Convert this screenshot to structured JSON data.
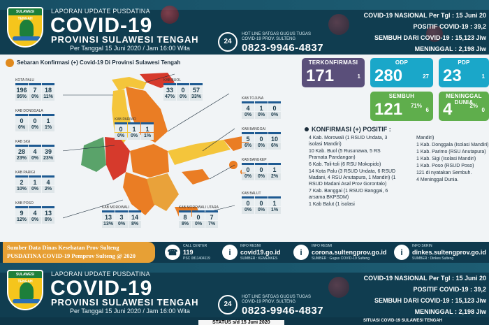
{
  "header": {
    "logo_text": "SULAWESI TENGAH",
    "subtitle": "LAPORAN UPDATE PUSDATINA",
    "title": "COVID-19",
    "province": "PROVINSI SULAWESI TENGAH",
    "date": "Per Tanggal 15 Juni 2020 / Jam 16:00 Wita",
    "hotline_badge": "24",
    "hotline_label_1": "HOT LINE SATGAS GUGUS TUGAS",
    "hotline_label_2": "COVID-19 PROV. SULTENG",
    "hotline_number": "0823-9946-4837"
  },
  "national": {
    "line1": "COVID-19 NASIONAL Per Tgl : 15 Juni 20",
    "line2": "POSITIF COVID-19 : 39,2",
    "line3": "SEMBUH DARI COVID-19 : 15,123 Jiw",
    "line4": "MENINGGAL : 2,198 Jiw"
  },
  "header2_national": {
    "line1": "COVID-19 NASIONAL Per Tgl : 15 Juni 20",
    "line2": "POSITIF COVID-19 : 39,2",
    "line3": "SEMBUH DARI COVID-19 : 15,123 Jiw",
    "line4": "MENINGGAL : 2,198 Jiw"
  },
  "map": {
    "heading": "Sebaran Konfirmasi (+) Covid-19 Di Provinsi Sulawesi Tengah",
    "districts": [
      {
        "name": "KOTA PALU",
        "row1": [
          "196",
          "7",
          "18"
        ],
        "row2": [
          "95%",
          "0%",
          "11%"
        ]
      },
      {
        "name": "KAB DONGGALA",
        "row1": [
          "0",
          "0",
          "1"
        ],
        "row2": [
          "0%",
          "0%",
          "1%"
        ]
      },
      {
        "name": "KAB SIGI",
        "row1": [
          "28",
          "4",
          "39"
        ],
        "row2": [
          "23%",
          "0%",
          "23%"
        ]
      },
      {
        "name": "KAB PARIGI",
        "row1": [
          "2",
          "1",
          "4"
        ],
        "row2": [
          "10%",
          "0%",
          "2%"
        ]
      },
      {
        "name": "KAB POSO",
        "row1": [
          "9",
          "4",
          "13"
        ],
        "row2": [
          "12%",
          "0%",
          "8%"
        ]
      },
      {
        "name": "KAB BUOL",
        "row1": [
          "33",
          "0",
          "57"
        ],
        "row2": [
          "47%",
          "0%",
          "33%"
        ]
      },
      {
        "name": "KAB PARIMO",
        "row1": [
          "0",
          "1",
          "1"
        ],
        "row2": [
          "0%",
          "0%",
          "1%"
        ]
      },
      {
        "name": "KAB MOROWALI",
        "row1": [
          "13",
          "3",
          "14"
        ],
        "row2": [
          "13%",
          "0%",
          "8%"
        ]
      },
      {
        "name": "KAB MOROWALI UTARA",
        "row1": [
          "8",
          "0",
          "7"
        ],
        "row2": [
          "8%",
          "0%",
          "7%"
        ]
      },
      {
        "name": "KAB TOJUNA",
        "row1": [
          "4",
          "1",
          "0"
        ],
        "row2": [
          "0%",
          "0%",
          "0%"
        ]
      },
      {
        "name": "KAB BANGGAI",
        "row1": [
          "5",
          "0",
          "10"
        ],
        "row2": [
          "6%",
          "0%",
          "6%"
        ]
      },
      {
        "name": "KAB BANGKEP",
        "row1": [
          "0",
          "0",
          "1"
        ],
        "row2": [
          "0%",
          "0%",
          "2%"
        ]
      },
      {
        "name": "KAB BALUT",
        "row1": [
          "0",
          "0",
          "1"
        ],
        "row2": [
          "0%",
          "0%",
          "1%"
        ]
      }
    ]
  },
  "cards": {
    "terkonfirmasi": {
      "title": "TERKONFIRMASI",
      "value": "171",
      "sub": "1"
    },
    "odp": {
      "title": "ODP",
      "value": "280",
      "sub": "27"
    },
    "pdp": {
      "title": "PDP",
      "value": "23",
      "sub": "1"
    },
    "sembuh": {
      "title": "SEMBUH",
      "value": "121",
      "pct": "71%",
      "sub": "6"
    },
    "meninggal": {
      "title": "MENINGGAL DUNIA",
      "value": "4",
      "pct": "2%",
      "sub": "0"
    }
  },
  "konfirmasi": {
    "heading": "KONFIRMASI (+) POSITIF :",
    "left": [
      "4 Kab. Morowali (1 RSUD Undata, 3 isolasi Mandiri)",
      "10 Kab. Buol (5 Rusunawa, 5 RS Pramata Pandangan)",
      "6 Kab. Toli-toli (6 RSU Mokopido)",
      "14 Kota Palu (3 RSUD Undata, 6 RSUD Madani, 4 RSU Anutapura, 1 Mandiri) (1 RSUD Madani Asal Prov Gorontalo)",
      "7 Kab. Banggai (1 RSUD Banggai, 6 arsama BKPSDM)",
      "1 Kab Balut (1 isolasi"
    ],
    "right": [
      "Mandiri)",
      "1 Kab. Donggala (Isolasi Mandiri)",
      "1 Kab. Parimo (RSU Anutapura)",
      "1 Kab. Sigi (Isolasi Mandiri)",
      "1 Kab. Poso (RSUD Poso)",
      "121 di nyatakan Sembuh.",
      "4 Meninggal Dunia."
    ]
  },
  "footer": {
    "source_1": "Sumber Data Dinas Kesehatan Prov Sulteng",
    "source_2": "PUSDATINA COVID-19 Pemprov Sulteng @ 2020",
    "call": {
      "label": "CALL CENTER",
      "number": "119",
      "sub": "PSC 0811404119"
    },
    "info1": {
      "label": "INFO RESMI",
      "url": "covid19.go.id",
      "sub": "SUMBER : KEMENKES"
    },
    "info2": {
      "label": "INFO RESMI",
      "url": "corona.sultengprov.go.id",
      "sub": "SUMBER : Gugus COVID-19 Sulteng"
    },
    "info3": {
      "label": "INFO SKRIN",
      "url": "dinkes.sultengprov.go.id",
      "sub": "SUMBER : Dinkes Sulteng"
    }
  },
  "bottom": {
    "status": "STATUS s/d 15 Juni 2020",
    "situasi": "SITUASI COVID-19 SULAWESI TENGAH"
  },
  "colors": {
    "navy": "#103d50",
    "purple": "#5a4f7a",
    "cyan": "#1aa7c9",
    "green": "#5fae4c",
    "orange": "#e7a035"
  }
}
